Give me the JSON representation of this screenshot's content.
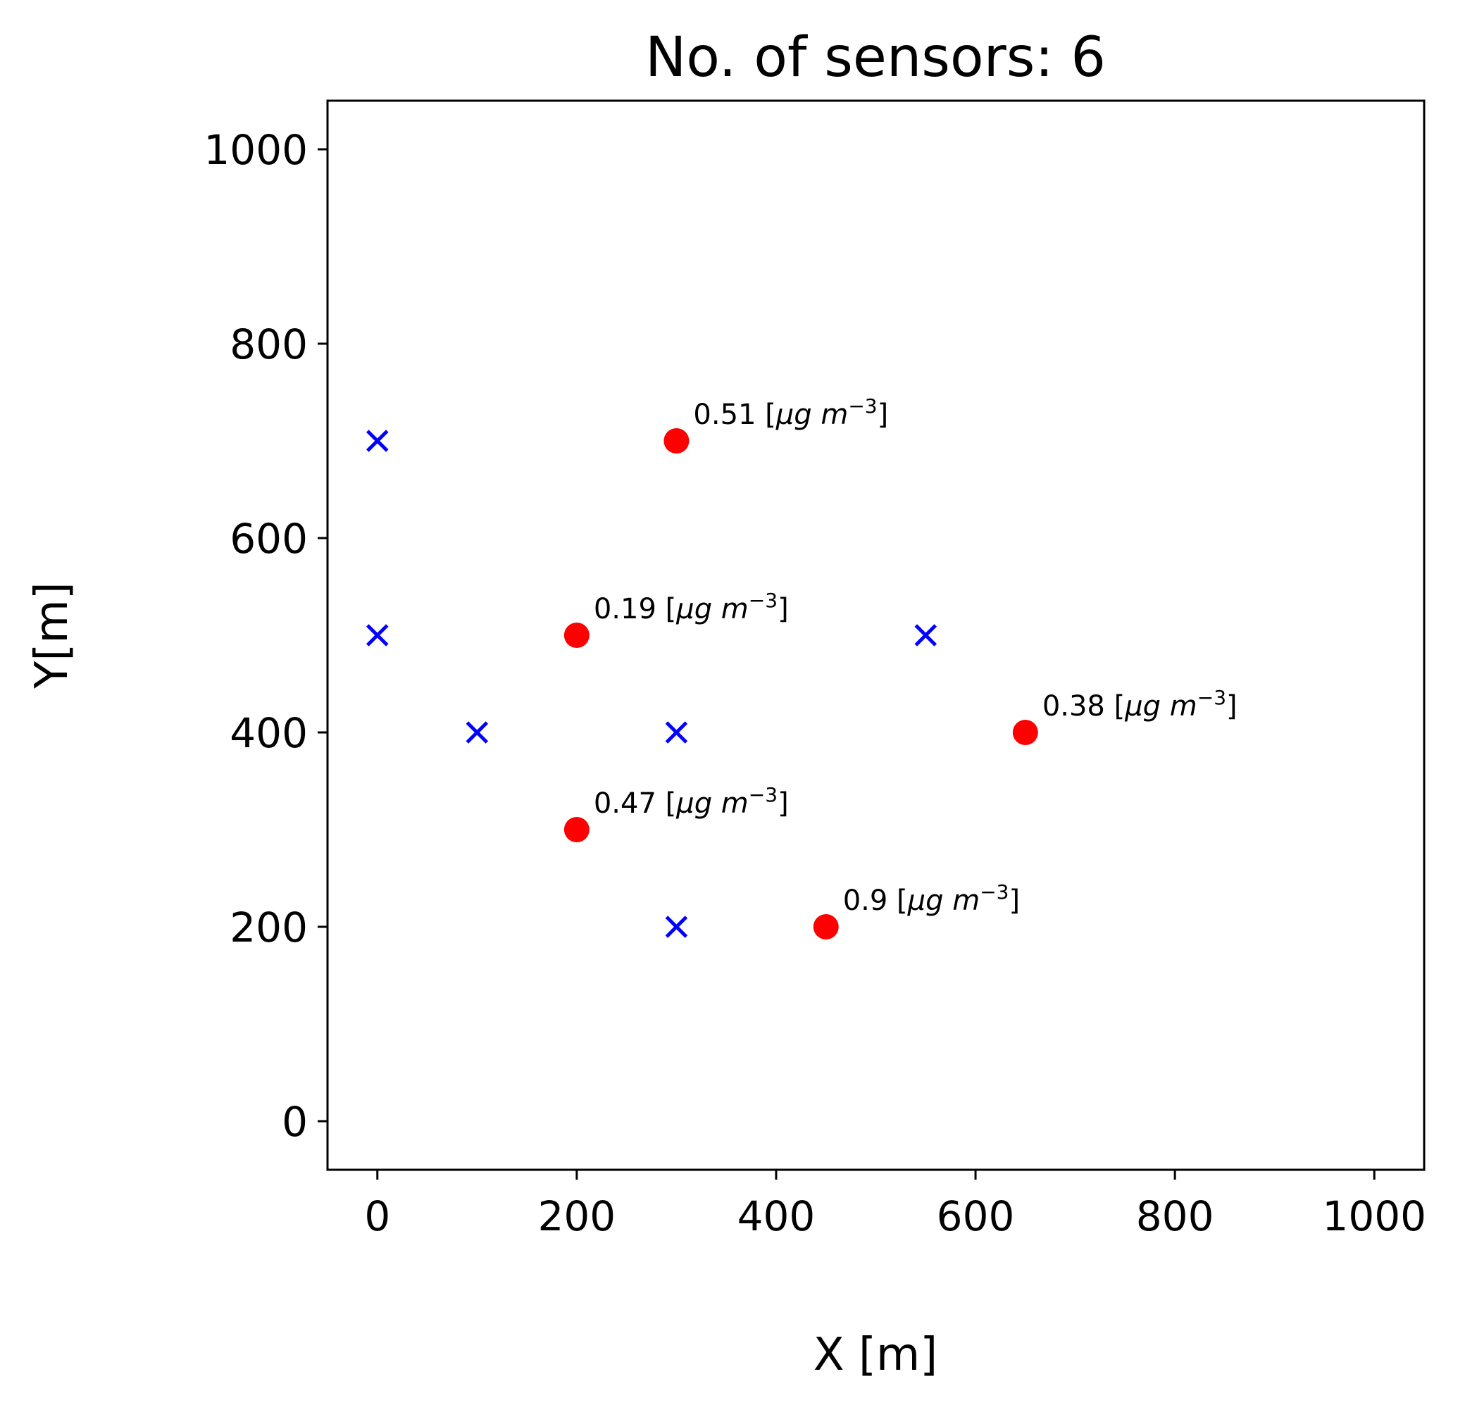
{
  "chart_data": {
    "type": "scatter",
    "title": "No. of sensors: 6",
    "xlabel": "X [m]",
    "ylabel": "Y[m]",
    "xlim": [
      -50,
      1050
    ],
    "ylim": [
      -50,
      1050
    ],
    "xticks": [
      0,
      200,
      400,
      600,
      800,
      1000
    ],
    "yticks": [
      0,
      200,
      400,
      600,
      800,
      1000
    ],
    "grid": false,
    "series": [
      {
        "marker": "x",
        "color": "#0000ff",
        "points": [
          {
            "x": 0,
            "y": 700
          },
          {
            "x": 0,
            "y": 500
          },
          {
            "x": 100,
            "y": 400
          },
          {
            "x": 300,
            "y": 400
          },
          {
            "x": 300,
            "y": 200
          },
          {
            "x": 550,
            "y": 500
          }
        ]
      },
      {
        "marker": "circle",
        "color": "#ff0000",
        "points": [
          {
            "x": 300,
            "y": 700,
            "value": "0.51",
            "unit_prefix": "[",
            "unit_mu": "μg",
            "unit_m": "m",
            "unit_exp": "−3",
            "unit_suffix": "]"
          },
          {
            "x": 200,
            "y": 500,
            "value": "0.19",
            "unit_prefix": "[",
            "unit_mu": "μg",
            "unit_m": "m",
            "unit_exp": "−3",
            "unit_suffix": "]"
          },
          {
            "x": 650,
            "y": 400,
            "value": "0.38",
            "unit_prefix": "[",
            "unit_mu": "μg",
            "unit_m": "m",
            "unit_exp": "−3",
            "unit_suffix": "]"
          },
          {
            "x": 200,
            "y": 300,
            "value": "0.47",
            "unit_prefix": "[",
            "unit_mu": "μg",
            "unit_m": "m",
            "unit_exp": "−3",
            "unit_suffix": "]"
          },
          {
            "x": 450,
            "y": 200,
            "value": "0.9",
            "unit_prefix": "[",
            "unit_mu": "μg",
            "unit_m": "m",
            "unit_exp": "−3",
            "unit_suffix": "]"
          }
        ]
      }
    ]
  }
}
